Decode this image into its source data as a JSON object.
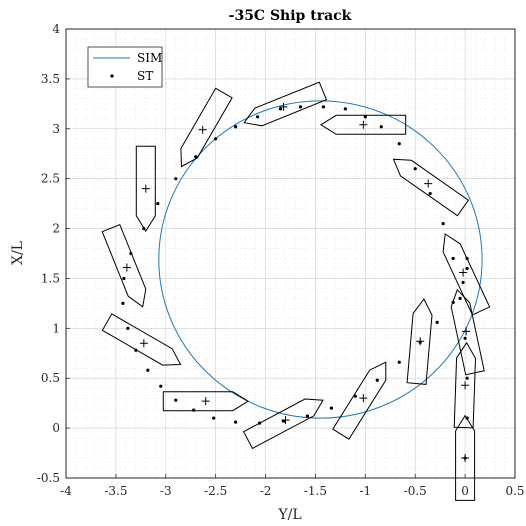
{
  "chart_data": {
    "type": "line",
    "title": "-35C Ship track",
    "xlabel": "Y/L",
    "ylabel": "X/L",
    "xlim": [
      -4,
      0.5
    ],
    "ylim": [
      -0.5,
      4
    ],
    "xticks": [
      "-4",
      "-3.5",
      "-3",
      "-2.5",
      "-2",
      "-1.5",
      "-1",
      "-0.5",
      "0",
      "0.5"
    ],
    "yticks": [
      "-0.5",
      "0",
      "0.5",
      "1",
      "1.5",
      "2",
      "2.5",
      "3",
      "3.5",
      "4"
    ],
    "grid": "on",
    "minor_grid": "on",
    "legend": "top-left",
    "colors": {
      "sim": "#1f77b4",
      "st": "#000000",
      "hull": "#000000"
    },
    "series": [
      {
        "name": "SIM",
        "style": "line",
        "circle": {
          "center": [
            -1.45,
            1.69
          ],
          "radius_y": 1.62,
          "radius_x": 1.59
        }
      },
      {
        "name": "ST",
        "style": "dots",
        "x": [
          0.0,
          0.02,
          0.02,
          0.0,
          -0.05,
          -0.12,
          -0.22,
          -0.35,
          -0.5,
          -0.66,
          -0.84,
          -1.0,
          -1.2,
          -1.42,
          -1.65,
          -1.85,
          -2.08,
          -2.3,
          -2.5,
          -2.7,
          -2.9,
          -3.08,
          -3.22,
          -3.35,
          -3.42,
          -3.43,
          -3.38,
          -3.3,
          -3.18,
          -3.05,
          -2.9,
          -2.72,
          -2.52,
          -2.3,
          -2.06,
          -1.82,
          -1.58,
          -1.34,
          -1.1,
          -0.88,
          -0.66,
          -0.45,
          -0.28,
          -0.12,
          -0.02,
          0.02,
          0.02
        ],
        "y": [
          -0.3,
          0.1,
          0.5,
          0.9,
          1.3,
          1.7,
          2.05,
          2.35,
          2.6,
          2.85,
          3.02,
          3.12,
          3.2,
          3.22,
          3.22,
          3.2,
          3.12,
          3.02,
          2.9,
          2.72,
          2.5,
          2.25,
          2.0,
          1.75,
          1.5,
          1.25,
          1.0,
          0.78,
          0.58,
          0.42,
          0.28,
          0.18,
          0.1,
          0.06,
          0.05,
          0.07,
          0.12,
          0.2,
          0.32,
          0.48,
          0.66,
          0.86,
          1.06,
          1.26,
          1.46,
          1.6,
          1.7
        ]
      }
    ],
    "markers": [
      {
        "x": 0.0,
        "y": -0.3
      },
      {
        "x": 0.0,
        "y": 0.43
      },
      {
        "x": 0.01,
        "y": 0.97
      },
      {
        "x": -0.02,
        "y": 1.56
      },
      {
        "x": -0.37,
        "y": 2.45
      },
      {
        "x": -1.02,
        "y": 3.04
      },
      {
        "x": -1.82,
        "y": 3.22
      },
      {
        "x": -2.63,
        "y": 2.99
      },
      {
        "x": -3.2,
        "y": 2.4
      },
      {
        "x": -3.39,
        "y": 1.61
      },
      {
        "x": -3.22,
        "y": 0.85
      },
      {
        "x": -2.6,
        "y": 0.27
      },
      {
        "x": -1.8,
        "y": 0.08
      },
      {
        "x": -1.02,
        "y": 0.3
      },
      {
        "x": -0.45,
        "y": 0.87
      }
    ],
    "hulls": [
      {
        "x": 0.0,
        "y": -0.3,
        "heading_deg": 0
      },
      {
        "x": 0.0,
        "y": 0.43,
        "heading_deg": 2
      },
      {
        "x": 0.01,
        "y": 0.97,
        "heading_deg": -12
      },
      {
        "x": -0.02,
        "y": 1.56,
        "heading_deg": -25
      },
      {
        "x": -0.37,
        "y": 2.45,
        "heading_deg": -55
      },
      {
        "x": -1.02,
        "y": 3.04,
        "heading_deg": -90
      },
      {
        "x": -1.82,
        "y": 3.22,
        "heading_deg": -112
      },
      {
        "x": -2.63,
        "y": 2.99,
        "heading_deg": -150
      },
      {
        "x": -3.2,
        "y": 2.4,
        "heading_deg": -180
      },
      {
        "x": -3.39,
        "y": 1.61,
        "heading_deg": 158
      },
      {
        "x": -3.22,
        "y": 0.85,
        "heading_deg": 120
      },
      {
        "x": -2.6,
        "y": 0.27,
        "heading_deg": 90
      },
      {
        "x": -1.8,
        "y": 0.08,
        "heading_deg": 62
      },
      {
        "x": -1.02,
        "y": 0.3,
        "heading_deg": 32
      },
      {
        "x": -0.45,
        "y": 0.87,
        "heading_deg": 5
      }
    ],
    "hull_length": 0.85,
    "hull_beam": 0.19
  }
}
